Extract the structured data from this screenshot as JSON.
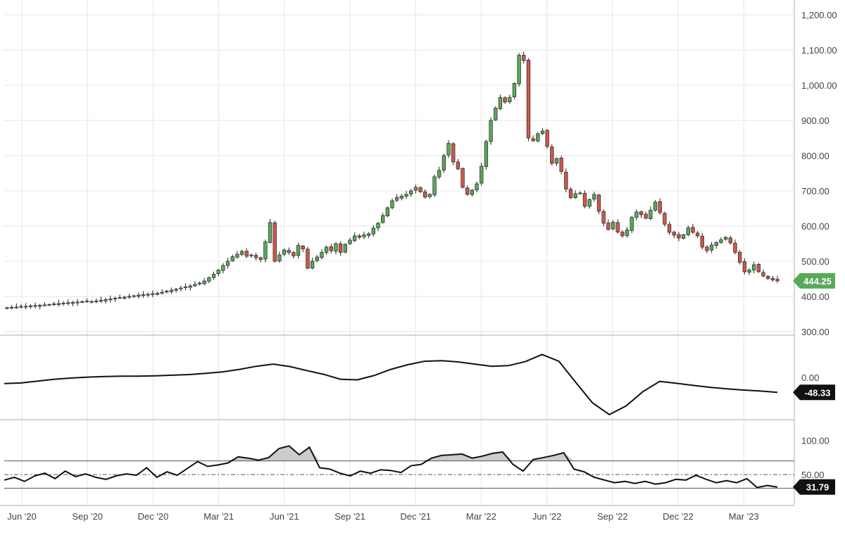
{
  "chart_data": [
    {
      "type": "candlestick",
      "panel": "price",
      "y_axis_side": "right",
      "ylim": [
        300,
        1200
      ],
      "y_ticks": [
        "300.00",
        "400.00",
        "500.00",
        "600.00",
        "700.00",
        "800.00",
        "900.00",
        "1,000.00",
        "1,100.00",
        "1,200.00"
      ],
      "y_tick_values": [
        300,
        400,
        500,
        600,
        700,
        800,
        900,
        1000,
        1100,
        1200
      ],
      "last_value_label": "444.25",
      "last_value": 444.25,
      "last_value_color": "#5aa95a",
      "up_color": "#5aa95a",
      "down_color": "#d0574b",
      "grid": true,
      "closes": [
        368,
        369,
        370,
        371,
        372,
        373,
        374,
        375,
        376,
        377,
        378,
        380,
        381,
        382,
        383,
        384,
        385,
        386,
        386,
        387,
        389,
        391,
        393,
        395,
        396,
        398,
        400,
        402,
        404,
        405,
        406,
        407,
        409,
        412,
        415,
        418,
        421,
        424,
        427,
        430,
        434,
        438,
        444,
        453,
        463,
        475,
        488,
        500,
        513,
        520,
        528,
        514,
        518,
        510,
        505,
        555,
        610,
        500,
        518,
        532,
        525,
        515,
        545,
        535,
        480,
        500,
        512,
        525,
        540,
        530,
        550,
        525,
        548,
        560,
        572,
        568,
        575,
        578,
        594,
        608,
        630,
        652,
        672,
        681,
        685,
        690,
        700,
        710,
        697,
        682,
        690,
        740,
        758,
        800,
        835,
        782,
        762,
        710,
        690,
        702,
        720,
        770,
        840,
        900,
        935,
        965,
        952,
        965,
        1005,
        1085,
        1070,
        850,
        842,
        862,
        870,
        826,
        778,
        792,
        755,
        705,
        680,
        692,
        694,
        656,
        675,
        690,
        642,
        608,
        590,
        611,
        583,
        572,
        589,
        625,
        640,
        632,
        622,
        645,
        668,
        638,
        605,
        582,
        574,
        566,
        575,
        595,
        582,
        572,
        540,
        530,
        546,
        553,
        561,
        568,
        552,
        525,
        497,
        470,
        475,
        490,
        470,
        458,
        451,
        447,
        444.25
      ]
    },
    {
      "type": "line",
      "panel": "oscillator",
      "y_axis_side": "right",
      "y_ticks": [
        "0.00"
      ],
      "y_tick_values": [
        0
      ],
      "last_value_label": "-48.33",
      "last_value": -48.33,
      "values": [
        -20,
        -18,
        -12,
        -6,
        -2,
        1,
        3,
        4,
        4,
        5,
        7,
        9,
        13,
        18,
        26,
        36,
        43,
        35,
        22,
        10,
        -6,
        -8,
        6,
        26,
        41,
        52,
        54,
        50,
        43,
        36,
        38,
        51,
        74,
        52,
        -16,
        -82,
        -120,
        -92,
        -46,
        -13,
        -19,
        -26,
        -32,
        -37,
        -41,
        -44,
        -48.33
      ]
    },
    {
      "type": "area-line",
      "panel": "rsi",
      "y_axis_side": "right",
      "y_ticks": [
        "50.00",
        "100.00"
      ],
      "y_tick_values": [
        50,
        100
      ],
      "reference_lines": [
        70,
        50,
        30
      ],
      "last_value_label": "31.79",
      "last_value": 31.79,
      "line_color": "#000000",
      "fill_color": "#cccccc",
      "values": [
        42,
        46,
        40,
        48,
        52,
        44,
        55,
        47,
        51,
        46,
        43,
        48,
        51,
        49,
        60,
        46,
        54,
        49,
        59,
        69,
        62,
        64,
        67,
        76,
        74,
        71,
        75,
        88,
        92,
        79,
        90,
        60,
        58,
        52,
        48,
        55,
        52,
        57,
        56,
        53,
        63,
        65,
        74,
        78,
        79,
        80,
        74,
        77,
        81,
        83,
        65,
        55,
        72,
        75,
        78,
        82,
        58,
        54,
        46,
        42,
        38,
        40,
        37,
        40,
        36,
        38,
        43,
        42,
        49,
        43,
        38,
        41,
        38,
        44,
        31,
        34,
        31.79
      ],
      "x_tick_labels": [
        "Jun '20",
        "Sep '20",
        "Dec '20",
        "Mar '21",
        "Jun '21",
        "Sep '21",
        "Dec '21",
        "Mar '22",
        "Jun '22",
        "Sep '22",
        "Dec '22",
        "Mar '23"
      ]
    }
  ]
}
